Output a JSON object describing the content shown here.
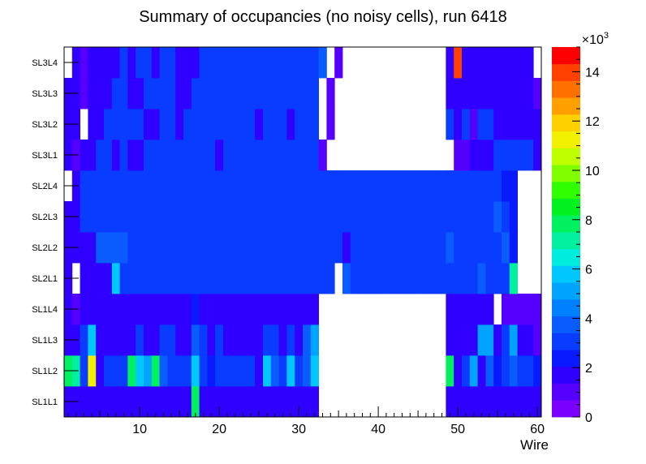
{
  "chart_data": {
    "type": "heatmap",
    "title": "Summary of occupancies (no noisy cells), run 6418",
    "xlabel": "Wire",
    "ylabel": "",
    "xlim": [
      0.5,
      60.5
    ],
    "x_ticks": [
      "10",
      "20",
      "30",
      "40",
      "50",
      "60"
    ],
    "y_categories": [
      "SL1L1",
      "SL1L2",
      "SL1L3",
      "SL1L4",
      "SL2L1",
      "SL2L2",
      "SL2L3",
      "SL2L4",
      "SL3L1",
      "SL3L2",
      "SL3L3",
      "SL3L4"
    ],
    "z_range": [
      0,
      15000
    ],
    "z_multiplier_label": "×10",
    "z_multiplier_exp": "3",
    "z_ticks": [
      "0",
      "2",
      "4",
      "6",
      "8",
      "10",
      "12",
      "14"
    ],
    "rows": {
      "SL1L1": [
        1.5,
        1.5,
        2,
        2,
        2,
        2,
        2,
        2,
        2,
        2,
        2,
        2,
        2,
        2,
        2,
        2,
        8,
        2,
        2,
        2,
        2,
        2,
        2,
        2,
        2,
        2,
        2,
        2,
        2,
        2,
        2,
        2,
        null,
        null,
        null,
        null,
        null,
        null,
        null,
        null,
        null,
        null,
        null,
        null,
        null,
        null,
        null,
        null,
        2,
        2,
        1.5,
        1.5,
        1.5,
        1.5,
        1.5,
        1.5,
        1.5,
        1.5,
        1.5,
        1.5
      ],
      "SL1L2": [
        8,
        7,
        3,
        11,
        1.5,
        3,
        3,
        3,
        8,
        6,
        5,
        8,
        4,
        3,
        3,
        3,
        6,
        3,
        2.5,
        3,
        3,
        3,
        3,
        3,
        2,
        6,
        4,
        3,
        6,
        3,
        4,
        6,
        null,
        null,
        null,
        null,
        null,
        null,
        null,
        null,
        null,
        null,
        null,
        null,
        null,
        null,
        null,
        null,
        8,
        2,
        3,
        5,
        2,
        4,
        2.5,
        3,
        4,
        3,
        3,
        2.5
      ],
      "SL1L3": [
        2,
        2,
        3,
        5.5,
        2,
        2,
        2,
        2,
        2,
        3,
        2,
        2,
        3,
        3,
        2,
        2,
        4,
        3,
        2,
        3,
        2,
        2,
        2,
        2,
        2,
        3,
        3,
        2,
        3,
        2,
        4,
        5,
        null,
        null,
        null,
        null,
        null,
        null,
        null,
        null,
        null,
        null,
        null,
        null,
        null,
        null,
        null,
        null,
        2,
        2,
        2,
        2,
        5,
        5,
        2,
        3,
        5,
        2,
        2,
        0.8
      ],
      "SL1L4": [
        1.5,
        0.8,
        1.5,
        1.5,
        1.5,
        1.5,
        1.5,
        1.5,
        1.5,
        1.5,
        1.5,
        1.5,
        1.5,
        1.5,
        1.5,
        1.5,
        2.5,
        1.5,
        1.5,
        1.5,
        1.5,
        1.5,
        1.5,
        1.5,
        1.5,
        1.5,
        1.5,
        1.5,
        1.5,
        1.5,
        1.5,
        1.5,
        null,
        null,
        null,
        null,
        null,
        null,
        null,
        null,
        null,
        null,
        null,
        null,
        null,
        null,
        null,
        null,
        1.5,
        2,
        2,
        2,
        2,
        2,
        null,
        1,
        1,
        1,
        1,
        1
      ],
      "SL2L1": [
        2,
        null,
        2,
        2,
        2,
        2,
        5.5,
        3,
        3,
        3,
        3,
        3,
        3,
        3,
        3,
        3,
        3,
        3,
        3,
        3,
        3,
        3,
        3,
        3,
        3,
        3,
        3,
        3,
        3,
        3,
        3,
        3,
        3,
        3,
        null,
        4,
        3,
        3,
        3,
        3,
        3,
        3,
        3,
        3,
        3,
        3,
        3,
        3,
        3,
        3,
        3,
        3,
        4,
        3,
        3,
        3,
        7,
        null,
        null,
        null
      ],
      "SL2L2": [
        2,
        2,
        2,
        2,
        4,
        4,
        4,
        4,
        3,
        3,
        3,
        3,
        3,
        3,
        3,
        3,
        3,
        3,
        3,
        3,
        3,
        3,
        3,
        3,
        3,
        3,
        3,
        3,
        3,
        3,
        3,
        3,
        3,
        3,
        3,
        1.5,
        3,
        3,
        3,
        3,
        3,
        3,
        3,
        3,
        3,
        3,
        3,
        3,
        4,
        3,
        3,
        3,
        3,
        3,
        3,
        4,
        2.5,
        null,
        null,
        null
      ],
      "SL2L3": [
        2,
        2,
        3,
        3,
        3,
        3,
        3,
        3,
        3,
        3,
        3,
        3,
        3,
        3,
        3,
        3,
        3,
        3,
        3,
        3,
        3,
        3,
        3,
        3,
        3,
        3,
        3,
        3,
        3,
        3,
        3,
        3,
        3,
        3,
        3,
        3,
        3,
        3,
        3,
        3,
        3,
        3,
        3,
        3,
        3,
        3,
        3,
        3,
        3,
        3,
        3,
        3,
        3,
        3,
        4,
        3,
        2.5,
        null,
        null,
        null
      ],
      "SL2L4": [
        null,
        2,
        3,
        3,
        3,
        3,
        3,
        3,
        3,
        3,
        3,
        3,
        3,
        3,
        3,
        3,
        3,
        3,
        3,
        3,
        3,
        3,
        3,
        3,
        3,
        3,
        3,
        3,
        3,
        3,
        3,
        3,
        3,
        3,
        3,
        3,
        3,
        3,
        3,
        3,
        3,
        3,
        3,
        3,
        3,
        3,
        3,
        3,
        3,
        3,
        3,
        3,
        3,
        3,
        3,
        2.5,
        2.5,
        null,
        null,
        null
      ],
      "SL3L1": [
        1.5,
        1,
        2,
        2,
        3,
        3,
        2,
        3,
        2,
        2,
        3,
        3,
        3,
        3,
        3,
        3,
        3,
        3,
        3,
        2,
        3,
        3,
        3,
        3,
        3,
        3,
        3,
        3,
        3,
        3,
        3,
        3,
        1,
        null,
        null,
        null,
        null,
        null,
        null,
        null,
        null,
        null,
        null,
        null,
        null,
        null,
        null,
        null,
        null,
        1,
        1,
        2,
        2,
        2,
        3,
        3,
        3,
        3,
        3,
        2
      ],
      "SL3L2": [
        1.5,
        2,
        null,
        1.5,
        2,
        3,
        3,
        3,
        3,
        3,
        2,
        2,
        3,
        3,
        2,
        3,
        3,
        3,
        3,
        3,
        3,
        3,
        3,
        3,
        2,
        3,
        3,
        3,
        2,
        3,
        3,
        3,
        null,
        0.8,
        null,
        null,
        null,
        null,
        null,
        null,
        null,
        null,
        null,
        null,
        null,
        null,
        null,
        null,
        3,
        2,
        3,
        1,
        3,
        3,
        2,
        2,
        2,
        2,
        2,
        2
      ],
      "SL3L3": [
        1.5,
        1.5,
        1,
        2,
        2,
        2,
        3,
        3,
        2,
        2,
        3,
        3,
        3,
        3,
        2,
        2,
        3,
        3,
        3,
        3,
        3,
        3,
        3,
        3,
        3,
        3,
        3,
        3,
        3,
        3,
        3,
        3,
        null,
        0.8,
        null,
        null,
        null,
        null,
        null,
        null,
        null,
        null,
        null,
        null,
        null,
        null,
        null,
        null,
        2,
        2,
        1.5,
        2,
        2,
        2,
        2,
        2,
        2,
        2,
        2,
        1
      ],
      "SL3L4": [
        null,
        1.5,
        1,
        2,
        1.5,
        2,
        2,
        3,
        2,
        3,
        3,
        2,
        3,
        3,
        2,
        2,
        2,
        3,
        3,
        3,
        3,
        3,
        3,
        3,
        3,
        3,
        3,
        3,
        3,
        3,
        3,
        3,
        4,
        null,
        0.8,
        null,
        null,
        null,
        null,
        null,
        null,
        null,
        null,
        null,
        null,
        null,
        null,
        null,
        2,
        14,
        2,
        1.5,
        2,
        2,
        2,
        2,
        2,
        2,
        2,
        null
      ]
    }
  }
}
